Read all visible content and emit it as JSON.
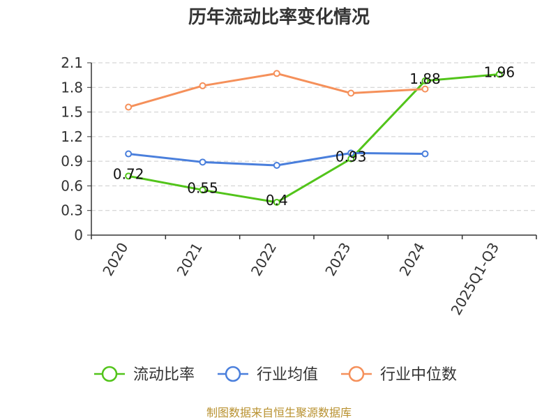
{
  "chart_data": {
    "type": "line",
    "title": "历年流动比率变化情况",
    "categories": [
      "2020",
      "2021",
      "2022",
      "2023",
      "2024",
      "2025Q1-Q3"
    ],
    "ylim": [
      0,
      2.1
    ],
    "yticks": [
      "0",
      "0.3",
      "0.6",
      "0.9",
      "1.2",
      "1.5",
      "1.8",
      "2.1"
    ],
    "grid": true,
    "legend_position": "bottom",
    "series": [
      {
        "name": "流动比率",
        "color": "#52c41a",
        "values": [
          0.72,
          0.55,
          0.4,
          0.93,
          1.88,
          1.96
        ],
        "labels": [
          "0.72",
          "0.55",
          "0.4",
          "0.93",
          "1.88",
          "1.96"
        ]
      },
      {
        "name": "行业均值",
        "color": "#4a7fdc",
        "values": [
          0.99,
          0.89,
          0.85,
          1.0,
          0.99,
          null
        ]
      },
      {
        "name": "行业中位数",
        "color": "#f5905a",
        "values": [
          1.56,
          1.82,
          1.97,
          1.73,
          1.78,
          null
        ]
      }
    ]
  },
  "source": "制图数据来自恒生聚源数据库"
}
